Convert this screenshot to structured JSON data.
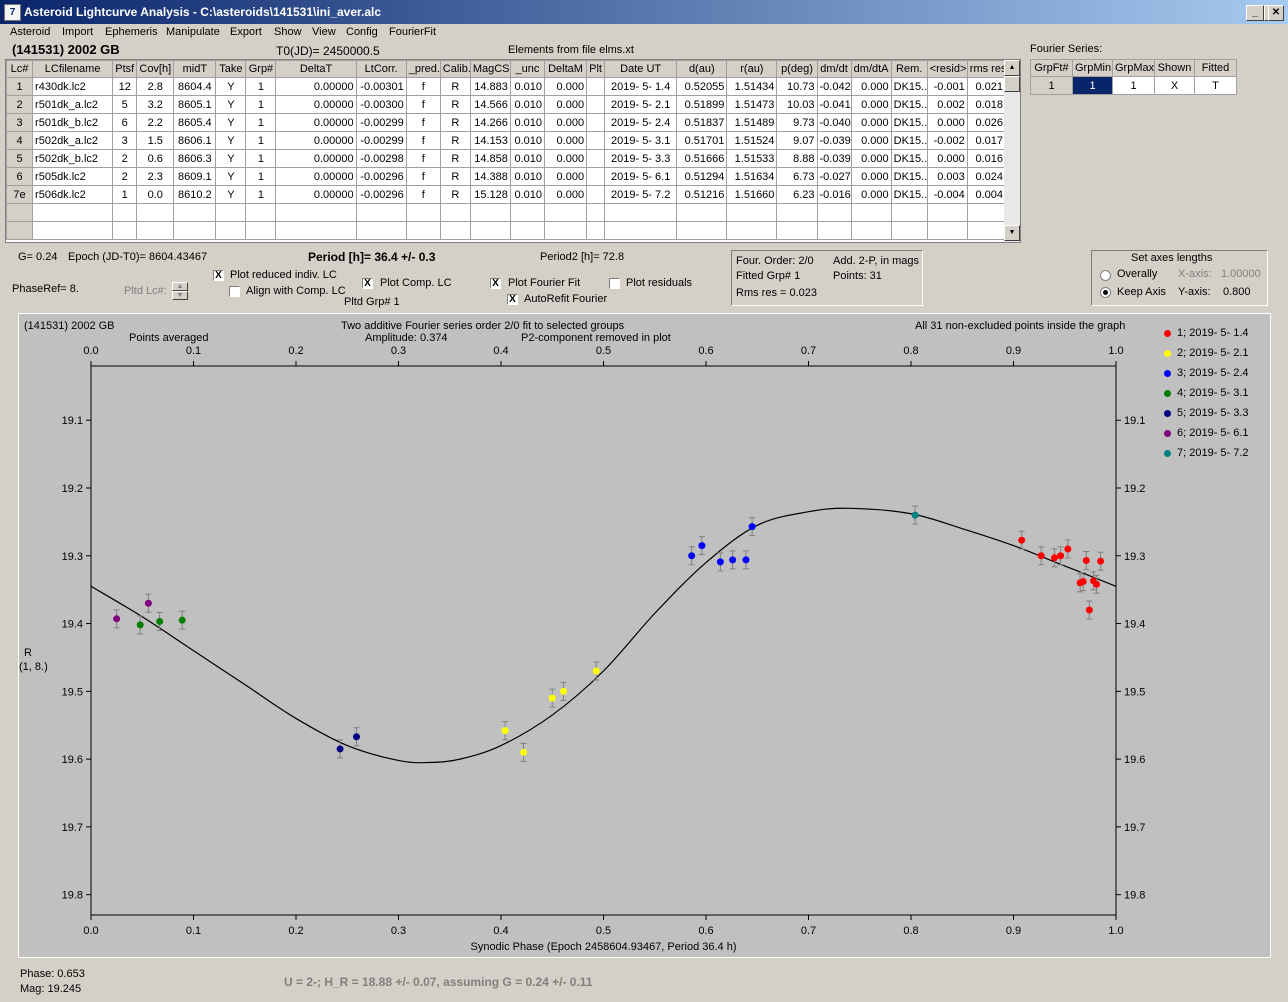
{
  "window": {
    "title": "Asteroid Lightcurve Analysis - C:\\asteroids\\141531\\ini_aver.alc",
    "icon": "app-icon"
  },
  "menu": [
    "Asteroid",
    "Import",
    "Ephemeris",
    "Manipulate",
    "Export",
    "Show",
    "View",
    "Config",
    "FourierFit"
  ],
  "header": {
    "object": "(141531) 2002 GB",
    "t0": "T0(JD)= 2450000.5",
    "elements": "Elements from file elms.xt"
  },
  "table": {
    "columns": [
      "Lc#",
      "LCfilename",
      "Ptsf",
      "Cov[h]",
      "midT",
      "Take",
      "Grp#",
      "DeltaT",
      "LtCorr.",
      "_pred.",
      "Calib.",
      "MagCS",
      "_unc",
      "DeltaM",
      "Plt",
      "Date UT",
      "d(au)",
      "r(au)",
      "p(deg)",
      "dm/dt",
      "dm/dtA",
      "Rem.",
      "<resid>",
      "rms res"
    ],
    "rows": [
      [
        "1",
        "r430dk.lc2",
        "12",
        "2.8",
        "8604.4",
        "Y",
        "1",
        "0.00000",
        "-0.00301",
        "f",
        "R",
        "14.883",
        "0.010",
        "0.000",
        "",
        "2019- 5- 1.4",
        "0.52055",
        "1.51434",
        "10.73",
        "-0.042",
        "0.000",
        "DK15...",
        "-0.001",
        "0.021"
      ],
      [
        "2",
        "r501dk_a.lc2",
        "5",
        "3.2",
        "8605.1",
        "Y",
        "1",
        "0.00000",
        "-0.00300",
        "f",
        "R",
        "14.566",
        "0.010",
        "0.000",
        "",
        "2019- 5- 2.1",
        "0.51899",
        "1.51473",
        "10.03",
        "-0.041",
        "0.000",
        "DK15...",
        "0.002",
        "0.018"
      ],
      [
        "3",
        "r501dk_b.lc2",
        "6",
        "2.2",
        "8605.4",
        "Y",
        "1",
        "0.00000",
        "-0.00299",
        "f",
        "R",
        "14.266",
        "0.010",
        "0.000",
        "",
        "2019- 5- 2.4",
        "0.51837",
        "1.51489",
        "9.73",
        "-0.040",
        "0.000",
        "DK15...",
        "0.000",
        "0.026"
      ],
      [
        "4",
        "r502dk_a.lc2",
        "3",
        "1.5",
        "8606.1",
        "Y",
        "1",
        "0.00000",
        "-0.00299",
        "f",
        "R",
        "14.153",
        "0.010",
        "0.000",
        "",
        "2019- 5- 3.1",
        "0.51701",
        "1.51524",
        "9.07",
        "-0.039",
        "0.000",
        "DK15...",
        "-0.002",
        "0.017"
      ],
      [
        "5",
        "r502dk_b.lc2",
        "2",
        "0.6",
        "8606.3",
        "Y",
        "1",
        "0.00000",
        "-0.00298",
        "f",
        "R",
        "14.858",
        "0.010",
        "0.000",
        "",
        "2019- 5- 3.3",
        "0.51666",
        "1.51533",
        "8.88",
        "-0.039",
        "0.000",
        "DK15...",
        "0.000",
        "0.016"
      ],
      [
        "6",
        "r505dk.lc2",
        "2",
        "2.3",
        "8609.1",
        "Y",
        "1",
        "0.00000",
        "-0.00296",
        "f",
        "R",
        "14.388",
        "0.010",
        "0.000",
        "",
        "2019- 5- 6.1",
        "0.51294",
        "1.51634",
        "6.73",
        "-0.027",
        "0.000",
        "DK15...",
        "0.003",
        "0.024"
      ],
      [
        "7e",
        "r506dk.lc2",
        "1",
        "0.0",
        "8610.2",
        "Y",
        "1",
        "0.00000",
        "-0.00296",
        "f",
        "R",
        "15.128",
        "0.010",
        "0.000",
        "",
        "2019- 5- 7.2",
        "0.51216",
        "1.51660",
        "6.23",
        "-0.016",
        "0.000",
        "DK15...",
        "-0.004",
        "0.004"
      ]
    ]
  },
  "fourier": {
    "title": "Fourier Series:",
    "columns": [
      "GrpFt#",
      "GrpMin",
      "GrpMax",
      "Shown",
      "Fitted"
    ],
    "row": [
      "1",
      "1",
      "1",
      "X",
      "T"
    ]
  },
  "params": {
    "g": "G= 0.24",
    "epoch": "Epoch (JD-T0)= 8604.43467",
    "period": "Period [h]= 36.4 +/- 0.3",
    "period2": "Period2 [h]= 72.8",
    "phaseref": "PhaseRef= 8.",
    "pltd_lc": "Pltd Lc#:",
    "pltd_grp": "Pltd Grp#  1"
  },
  "checks": {
    "reduced": {
      "label": "Plot reduced indiv. LC",
      "checked": "X"
    },
    "align": {
      "label": "Align with Comp. LC",
      "checked": ""
    },
    "comp": {
      "label": "Plot Comp. LC",
      "checked": "X"
    },
    "fourier_fit": {
      "label": "Plot Fourier Fit",
      "checked": "X"
    },
    "autorefit": {
      "label": "AutoRefit Fourier",
      "checked": "X"
    },
    "residuals": {
      "label": "Plot residuals",
      "checked": ""
    }
  },
  "info_box": {
    "order": "Four. Order:  2/0",
    "add": "Add. 2-P, in mags",
    "fitted": "Fitted Grp# 1",
    "points": "Points: 31",
    "rms": "Rms res      = 0.023"
  },
  "axes_box": {
    "title": "Set axes lengths",
    "overall": "Overally",
    "keep": "Keep Axis",
    "x_label": "X-axis:",
    "x_value": "1.00000",
    "y_label": "Y-axis:",
    "y_value": "0.800",
    "selected": "keep"
  },
  "plot_text": {
    "name": "(141531) 2002 GB",
    "points_averaged": "Points averaged",
    "fit_desc": "Two additive Fourier series order 2/0 fit to selected groups",
    "amplitude": "Amplitude: 0.374",
    "p2": "P2-component removed in plot",
    "all_points": "All 31 non-excluded points inside the graph",
    "ylabel_1": "R",
    "ylabel_2": "(1, 8.)"
  },
  "status": {
    "phase": "Phase:  0.653",
    "mag": "Mag:   19.245",
    "u_line": "U = 2-; H_R = 18.88 +/- 0.07, assuming G = 0.24 +/- 0.11"
  },
  "chart_data": {
    "type": "scatter",
    "xlabel": "Synodic Phase (Epoch 2458604.93467, Period 36.4 h)",
    "x_ticks": [
      "0.0",
      "0.1",
      "0.2",
      "0.3",
      "0.4",
      "0.5",
      "0.6",
      "0.7",
      "0.8",
      "0.9",
      "1.0"
    ],
    "y_ticks": [
      "19.1",
      "19.2",
      "19.3",
      "19.4",
      "19.5",
      "19.6",
      "19.7",
      "19.8"
    ],
    "xlim": [
      0.0,
      1.0
    ],
    "ylim": [
      19.83,
      19.02
    ],
    "legend_position": "right",
    "series": [
      {
        "name": "1; 2019- 5- 1.4",
        "color": "#ff0000",
        "points": [
          [
            0.908,
            19.277
          ],
          [
            0.927,
            19.3
          ],
          [
            0.94,
            19.303
          ],
          [
            0.946,
            19.3
          ],
          [
            0.953,
            19.29
          ],
          [
            0.965,
            19.34
          ],
          [
            0.968,
            19.338
          ],
          [
            0.971,
            19.307
          ],
          [
            0.974,
            19.38
          ],
          [
            0.978,
            19.337
          ],
          [
            0.981,
            19.342
          ],
          [
            0.985,
            19.308
          ]
        ]
      },
      {
        "name": "2; 2019- 5- 2.1",
        "color": "#ffff00",
        "points": [
          [
            0.404,
            19.558
          ],
          [
            0.422,
            19.59
          ],
          [
            0.45,
            19.51
          ],
          [
            0.461,
            19.5
          ],
          [
            0.493,
            19.47
          ]
        ]
      },
      {
        "name": "3; 2019- 5- 2.4",
        "color": "#0000ff",
        "points": [
          [
            0.586,
            19.3
          ],
          [
            0.596,
            19.285
          ],
          [
            0.614,
            19.309
          ],
          [
            0.626,
            19.306
          ],
          [
            0.639,
            19.306
          ],
          [
            0.645,
            19.257
          ]
        ]
      },
      {
        "name": "4; 2019- 5- 3.1",
        "color": "#008000",
        "points": [
          [
            0.048,
            19.402
          ],
          [
            0.067,
            19.397
          ],
          [
            0.089,
            19.395
          ]
        ]
      },
      {
        "name": "5; 2019- 5- 3.3",
        "color": "#000080",
        "points": [
          [
            0.243,
            19.585
          ],
          [
            0.259,
            19.567
          ]
        ]
      },
      {
        "name": "6; 2019- 5- 6.1",
        "color": "#800080",
        "points": [
          [
            0.025,
            19.393
          ],
          [
            0.056,
            19.37
          ]
        ]
      },
      {
        "name": "7; 2019- 5- 7.2",
        "color": "#008080",
        "points": [
          [
            0.804,
            19.24
          ]
        ]
      }
    ],
    "fit_curve": [
      [
        0.0,
        19.345
      ],
      [
        0.05,
        19.39
      ],
      [
        0.1,
        19.44
      ],
      [
        0.15,
        19.49
      ],
      [
        0.2,
        19.54
      ],
      [
        0.25,
        19.58
      ],
      [
        0.3,
        19.602
      ],
      [
        0.33,
        19.605
      ],
      [
        0.36,
        19.6
      ],
      [
        0.4,
        19.58
      ],
      [
        0.45,
        19.535
      ],
      [
        0.5,
        19.47
      ],
      [
        0.55,
        19.385
      ],
      [
        0.6,
        19.31
      ],
      [
        0.65,
        19.255
      ],
      [
        0.7,
        19.235
      ],
      [
        0.74,
        19.23
      ],
      [
        0.8,
        19.238
      ],
      [
        0.85,
        19.26
      ],
      [
        0.9,
        19.285
      ],
      [
        0.95,
        19.315
      ],
      [
        1.0,
        19.345
      ]
    ]
  }
}
